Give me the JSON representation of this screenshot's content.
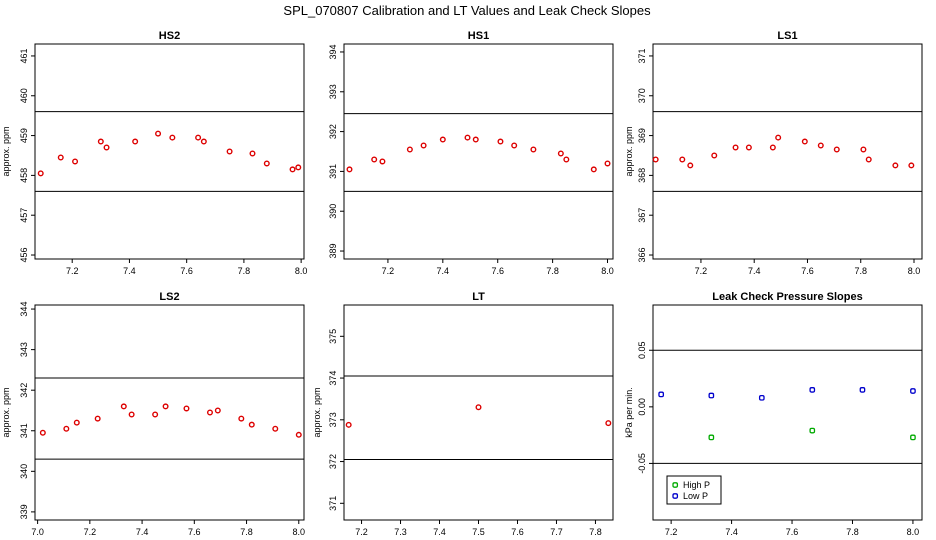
{
  "figure_title": "SPL_070807  Calibration and LT Values and Leak Check Slopes",
  "chart_data": [
    {
      "type": "scatter",
      "title": "HS2",
      "xlabel": "",
      "ylabel": "approx. ppm",
      "xlim": [
        7.07,
        8.01
      ],
      "ylim": [
        455.9,
        461.3
      ],
      "xticks": [
        "7.2",
        "7.4",
        "7.6",
        "7.8",
        "8.0"
      ],
      "yticks": [
        "456",
        "457",
        "458",
        "459",
        "460",
        "461"
      ],
      "hlines": [
        459.6,
        457.6
      ],
      "grid": false,
      "series": [
        {
          "color": "#dd0000",
          "x": [
            7.09,
            7.16,
            7.21,
            7.3,
            7.32,
            7.42,
            7.5,
            7.55,
            7.64,
            7.66,
            7.75,
            7.83,
            7.88,
            7.97,
            7.99
          ],
          "y": [
            458.05,
            458.45,
            458.35,
            458.85,
            458.7,
            458.85,
            459.05,
            458.95,
            458.95,
            458.85,
            458.6,
            458.55,
            458.3,
            458.15,
            458.2
          ]
        }
      ]
    },
    {
      "type": "scatter",
      "title": "HS1",
      "xlabel": "",
      "ylabel": "",
      "xlim": [
        7.04,
        8.02
      ],
      "ylim": [
        388.8,
        394.2
      ],
      "xticks": [
        "7.2",
        "7.4",
        "7.6",
        "7.8",
        "8.0"
      ],
      "yticks": [
        "389",
        "390",
        "391",
        "392",
        "393",
        "394"
      ],
      "hlines": [
        392.45,
        390.5
      ],
      "grid": false,
      "series": [
        {
          "color": "#dd0000",
          "x": [
            7.06,
            7.15,
            7.18,
            7.28,
            7.33,
            7.4,
            7.49,
            7.52,
            7.61,
            7.66,
            7.73,
            7.83,
            7.85,
            7.95,
            8.0
          ],
          "y": [
            391.05,
            391.3,
            391.25,
            391.55,
            391.65,
            391.8,
            391.85,
            391.8,
            391.75,
            391.65,
            391.55,
            391.45,
            391.3,
            391.05,
            391.2
          ]
        }
      ]
    },
    {
      "type": "scatter",
      "title": "LS1",
      "xlabel": "",
      "ylabel": "approx. ppm",
      "xlim": [
        7.02,
        8.03
      ],
      "ylim": [
        365.9,
        371.3
      ],
      "xticks": [
        "7.2",
        "7.4",
        "7.6",
        "7.8",
        "8.0"
      ],
      "yticks": [
        "366",
        "367",
        "368",
        "369",
        "370",
        "371"
      ],
      "hlines": [
        369.6,
        367.6
      ],
      "grid": false,
      "series": [
        {
          "color": "#dd0000",
          "x": [
            7.03,
            7.13,
            7.16,
            7.25,
            7.33,
            7.38,
            7.47,
            7.49,
            7.59,
            7.65,
            7.71,
            7.81,
            7.83,
            7.93,
            7.99
          ],
          "y": [
            368.4,
            368.4,
            368.25,
            368.5,
            368.7,
            368.7,
            368.7,
            368.95,
            368.85,
            368.75,
            368.65,
            368.65,
            368.4,
            368.25,
            368.25
          ]
        }
      ]
    },
    {
      "type": "scatter",
      "title": "LS2",
      "xlabel": "",
      "ylabel": "approx. ppm",
      "xlim": [
        6.99,
        8.02
      ],
      "ylim": [
        338.8,
        344.1
      ],
      "xticks": [
        "7.0",
        "7.2",
        "7.4",
        "7.6",
        "7.8",
        "8.0"
      ],
      "yticks": [
        "339",
        "340",
        "341",
        "342",
        "343",
        "344"
      ],
      "hlines": [
        342.3,
        340.3
      ],
      "grid": false,
      "series": [
        {
          "color": "#dd0000",
          "x": [
            7.02,
            7.11,
            7.15,
            7.23,
            7.33,
            7.36,
            7.45,
            7.49,
            7.57,
            7.66,
            7.69,
            7.78,
            7.82,
            7.91,
            8.0
          ],
          "y": [
            340.95,
            341.05,
            341.2,
            341.3,
            341.6,
            341.4,
            341.4,
            341.6,
            341.55,
            341.45,
            341.5,
            341.3,
            341.15,
            341.05,
            340.9
          ]
        }
      ]
    },
    {
      "type": "scatter",
      "title": "LT",
      "xlabel": "",
      "ylabel": "approx. ppm",
      "xlim": [
        7.155,
        7.845
      ],
      "ylim": [
        370.6,
        375.75
      ],
      "xticks": [
        "7.2",
        "7.3",
        "7.4",
        "7.5",
        "7.6",
        "7.7",
        "7.8"
      ],
      "yticks": [
        "371",
        "372",
        "373",
        "374",
        "375"
      ],
      "hlines": [
        374.05,
        372.05
      ],
      "grid": false,
      "series": [
        {
          "color": "#dd0000",
          "x": [
            7.167,
            7.5,
            7.833
          ],
          "y": [
            372.88,
            373.3,
            372.92
          ]
        }
      ]
    },
    {
      "type": "scatter",
      "title": "Leak Check Pressure Slopes",
      "xlabel": "",
      "ylabel": "kPa per min.",
      "xlim": [
        7.14,
        8.03
      ],
      "ylim": [
        -0.1,
        0.09
      ],
      "xticks": [
        "7.2",
        "7.4",
        "7.6",
        "7.8",
        "8.0"
      ],
      "yticks": [
        "-0.05",
        "0.00",
        "0.05"
      ],
      "hlines": [
        0.05,
        -0.05
      ],
      "grid": false,
      "legend": "bottom-left",
      "series": [
        {
          "name": "High P",
          "color": "#00aa00",
          "x": [
            7.333,
            7.667,
            8.0
          ],
          "y": [
            -0.027,
            -0.021,
            -0.027
          ]
        },
        {
          "name": "Low P",
          "color": "#0000cc",
          "x": [
            7.167,
            7.333,
            7.5,
            7.667,
            7.833,
            8.0
          ],
          "y": [
            0.011,
            0.01,
            0.008,
            0.015,
            0.015,
            0.014
          ]
        }
      ]
    }
  ]
}
